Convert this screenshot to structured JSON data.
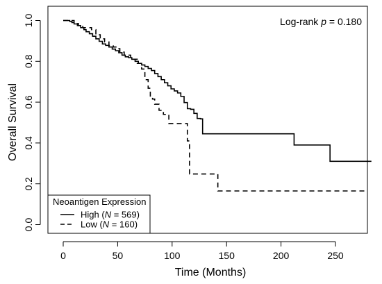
{
  "chart_data": {
    "type": "line",
    "xlabel": "Time (Months)",
    "ylabel": "Overall Survival",
    "xlim": [
      0,
      300
    ],
    "ylim": [
      0,
      1.0
    ],
    "x_ticks": [
      0,
      50,
      100,
      150,
      200,
      250
    ],
    "y_ticks": [
      0.0,
      0.2,
      0.4,
      0.6,
      0.8,
      1.0
    ],
    "y_tick_labels": [
      "0.0",
      "0.2",
      "0.4",
      "0.6",
      "0.8",
      "1.0"
    ],
    "grid": false,
    "annotation": {
      "prefix": "Log-rank ",
      "italic": "p",
      "suffix": " = 0.180"
    },
    "legend": {
      "title": "Neoantigen Expression",
      "placement": "bottom-left",
      "entries": [
        {
          "label": "High (",
          "italic": "N",
          "tail": " = 569)",
          "style": "solid"
        },
        {
          "label": "Low (",
          "italic": "N",
          "tail": " = 160)",
          "style": "dashed"
        }
      ]
    },
    "series": [
      {
        "name": "High (N = 569)",
        "style": "solid",
        "color": "#000000",
        "x": [
          0,
          6,
          8,
          10,
          13,
          16,
          19,
          21,
          24,
          27,
          30,
          33,
          36,
          39,
          42,
          45,
          48,
          51,
          54,
          57,
          60,
          63,
          66,
          69,
          72,
          75,
          78,
          81,
          84,
          87,
          90,
          93,
          96,
          99,
          102,
          105,
          108,
          111,
          114,
          117,
          120,
          123,
          126,
          128,
          130,
          140,
          160,
          180,
          200,
          212,
          212,
          245,
          245,
          270,
          283
        ],
        "y": [
          1.0,
          0.995,
          0.99,
          0.983,
          0.975,
          0.965,
          0.955,
          0.945,
          0.935,
          0.923,
          0.91,
          0.898,
          0.885,
          0.878,
          0.87,
          0.86,
          0.852,
          0.842,
          0.83,
          0.822,
          0.818,
          0.81,
          0.8,
          0.79,
          0.782,
          0.775,
          0.765,
          0.755,
          0.74,
          0.725,
          0.71,
          0.695,
          0.68,
          0.665,
          0.655,
          0.645,
          0.628,
          0.598,
          0.568,
          0.565,
          0.545,
          0.52,
          0.518,
          0.445,
          0.445,
          0.445,
          0.445,
          0.445,
          0.445,
          0.445,
          0.39,
          0.39,
          0.31,
          0.31,
          0.31
        ]
      },
      {
        "name": "Low (N = 160)",
        "style": "dashed",
        "color": "#000000",
        "x": [
          0,
          10,
          14,
          18,
          26,
          30,
          34,
          38,
          42,
          46,
          50,
          52,
          56,
          62,
          68,
          72,
          75,
          78,
          80,
          82,
          84,
          88,
          92,
          97,
          102,
          107,
          112,
          114,
          116,
          118,
          120,
          130,
          140,
          142,
          160,
          200,
          240,
          278
        ],
        "y": [
          1.0,
          0.985,
          0.975,
          0.965,
          0.955,
          0.93,
          0.91,
          0.895,
          0.878,
          0.87,
          0.862,
          0.845,
          0.83,
          0.81,
          0.79,
          0.762,
          0.71,
          0.668,
          0.63,
          0.615,
          0.59,
          0.56,
          0.54,
          0.495,
          0.495,
          0.495,
          0.495,
          0.41,
          0.248,
          0.248,
          0.248,
          0.248,
          0.248,
          0.165,
          0.165,
          0.165,
          0.165,
          0.165
        ]
      }
    ]
  }
}
